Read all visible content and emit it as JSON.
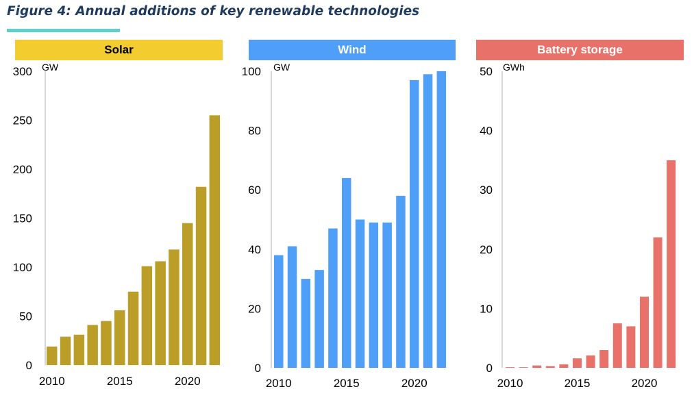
{
  "figure": {
    "title": "Figure 4: Annual additions of key renewable technologies"
  },
  "colors": {
    "solar": "#bb9e28",
    "solar_header": "#f3cc30",
    "wind": "#4f9ef7",
    "wind_header": "#4f9ef7",
    "battery": "#e8716a",
    "battery_header": "#e8716a",
    "title_underline": "#5fcfc8",
    "title_text": "#1f3a5f"
  },
  "chart_data": [
    {
      "type": "bar",
      "title": "Solar",
      "unit": "GW",
      "x": [
        2010,
        2011,
        2012,
        2013,
        2014,
        2015,
        2016,
        2017,
        2018,
        2019,
        2020,
        2021,
        2022
      ],
      "values": [
        19,
        29,
        31,
        41,
        45,
        56,
        75,
        101,
        106,
        118,
        145,
        182,
        255
      ],
      "ylim": [
        0,
        300
      ],
      "yticks": [
        0,
        50,
        100,
        150,
        200,
        250,
        300
      ],
      "xticks": [
        2010,
        2015,
        2020
      ],
      "grid": false
    },
    {
      "type": "bar",
      "title": "Wind",
      "unit": "GW",
      "x": [
        2010,
        2011,
        2012,
        2013,
        2014,
        2015,
        2016,
        2017,
        2018,
        2019,
        2020,
        2021,
        2022
      ],
      "values": [
        38,
        41,
        30,
        33,
        47,
        64,
        50,
        49,
        49,
        58,
        97,
        99,
        100
      ],
      "ylim": [
        0,
        100
      ],
      "yticks": [
        0,
        20,
        40,
        60,
        80,
        100
      ],
      "xticks": [
        2010,
        2015,
        2020
      ],
      "grid": false
    },
    {
      "type": "bar",
      "title": "Battery storage",
      "unit": "GWh",
      "x": [
        2010,
        2011,
        2012,
        2013,
        2014,
        2015,
        2016,
        2017,
        2018,
        2019,
        2020,
        2021,
        2022
      ],
      "values": [
        0.1,
        0.1,
        0.4,
        0.3,
        0.6,
        1.6,
        2.1,
        3.0,
        7.5,
        7.0,
        12.0,
        22.0,
        35.0
      ],
      "ylim": [
        0,
        50
      ],
      "yticks": [
        0,
        10,
        20,
        30,
        40,
        50
      ],
      "xticks": [
        2010,
        2015,
        2020
      ],
      "grid": false
    }
  ]
}
